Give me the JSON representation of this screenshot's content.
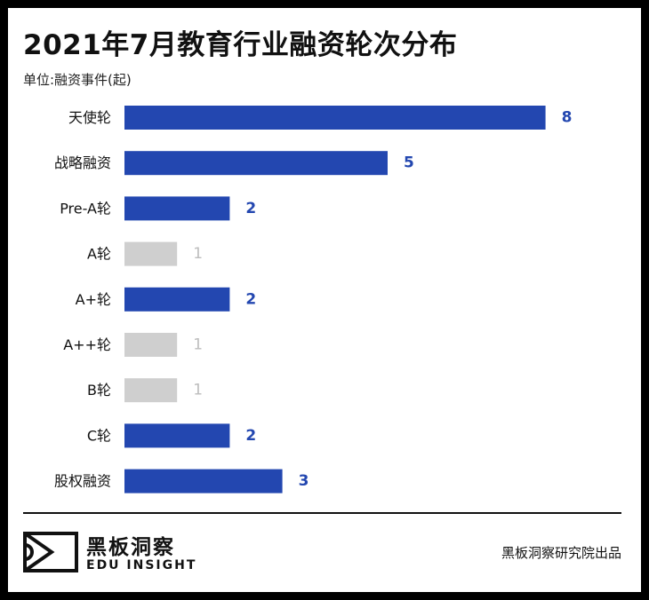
{
  "chart_data": {
    "type": "bar",
    "orientation": "horizontal",
    "title": "2021年7月教育行业融资轮次分布",
    "unit_label": "单位:融资事件(起)",
    "categories": [
      "天使轮",
      "战略融资",
      "Pre-A轮",
      "A轮",
      "A+轮",
      "A++轮",
      "B轮",
      "C轮",
      "股权融资"
    ],
    "values": [
      8,
      5,
      2,
      1,
      2,
      1,
      1,
      2,
      3
    ],
    "colors": {
      "highlight": "#2347b0",
      "muted": "#cfcfcf",
      "muted_label": "#bdbdbd"
    },
    "highlight_rule": "value >= 2 shown in blue; value 1 shown in gray"
  },
  "footer": {
    "logo_cn": "黑板洞察",
    "logo_en": "EDU INSIGHT",
    "logo_icon": "edu-insight-logo-icon",
    "source": "黑板洞察研究院出品"
  }
}
